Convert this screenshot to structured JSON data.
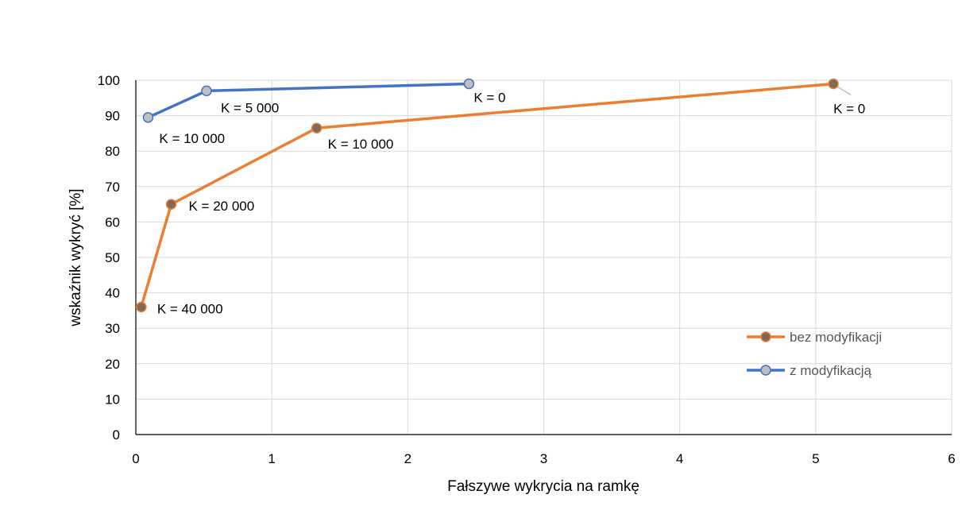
{
  "chart_data": {
    "type": "scatter",
    "title": "",
    "xlabel": "Fałszywe wykrycia na ramkę",
    "ylabel": "wskaźnik wykryć [%]",
    "xlim": [
      0,
      6
    ],
    "ylim": [
      0,
      100
    ],
    "x_ticks": [
      0,
      1,
      2,
      3,
      4,
      5,
      6
    ],
    "y_ticks": [
      0,
      10,
      20,
      30,
      40,
      50,
      60,
      70,
      80,
      90,
      100
    ],
    "grid": "vertical and horizontal",
    "legend_position": "right, lower middle",
    "series": [
      {
        "name": "bez modyfikacji",
        "color": "#ED7D31",
        "marker_color": "#7F6A5A",
        "points": [
          {
            "x": 0.04,
            "y": 36,
            "label": "K = 40 000"
          },
          {
            "x": 0.26,
            "y": 65,
            "label": "K = 20 000"
          },
          {
            "x": 1.33,
            "y": 86.5,
            "label": "K = 10 000"
          },
          {
            "x": 5.13,
            "y": 99,
            "label": "K = 0"
          }
        ]
      },
      {
        "name": "z modyfikacją",
        "color": "#4472C4",
        "marker_color": "#BFBFBF",
        "points": [
          {
            "x": 0.09,
            "y": 89.5,
            "label": "K = 10 000"
          },
          {
            "x": 0.52,
            "y": 97,
            "label": "K = 5 000"
          },
          {
            "x": 2.45,
            "y": 99,
            "label": "K = 0"
          }
        ]
      }
    ]
  }
}
